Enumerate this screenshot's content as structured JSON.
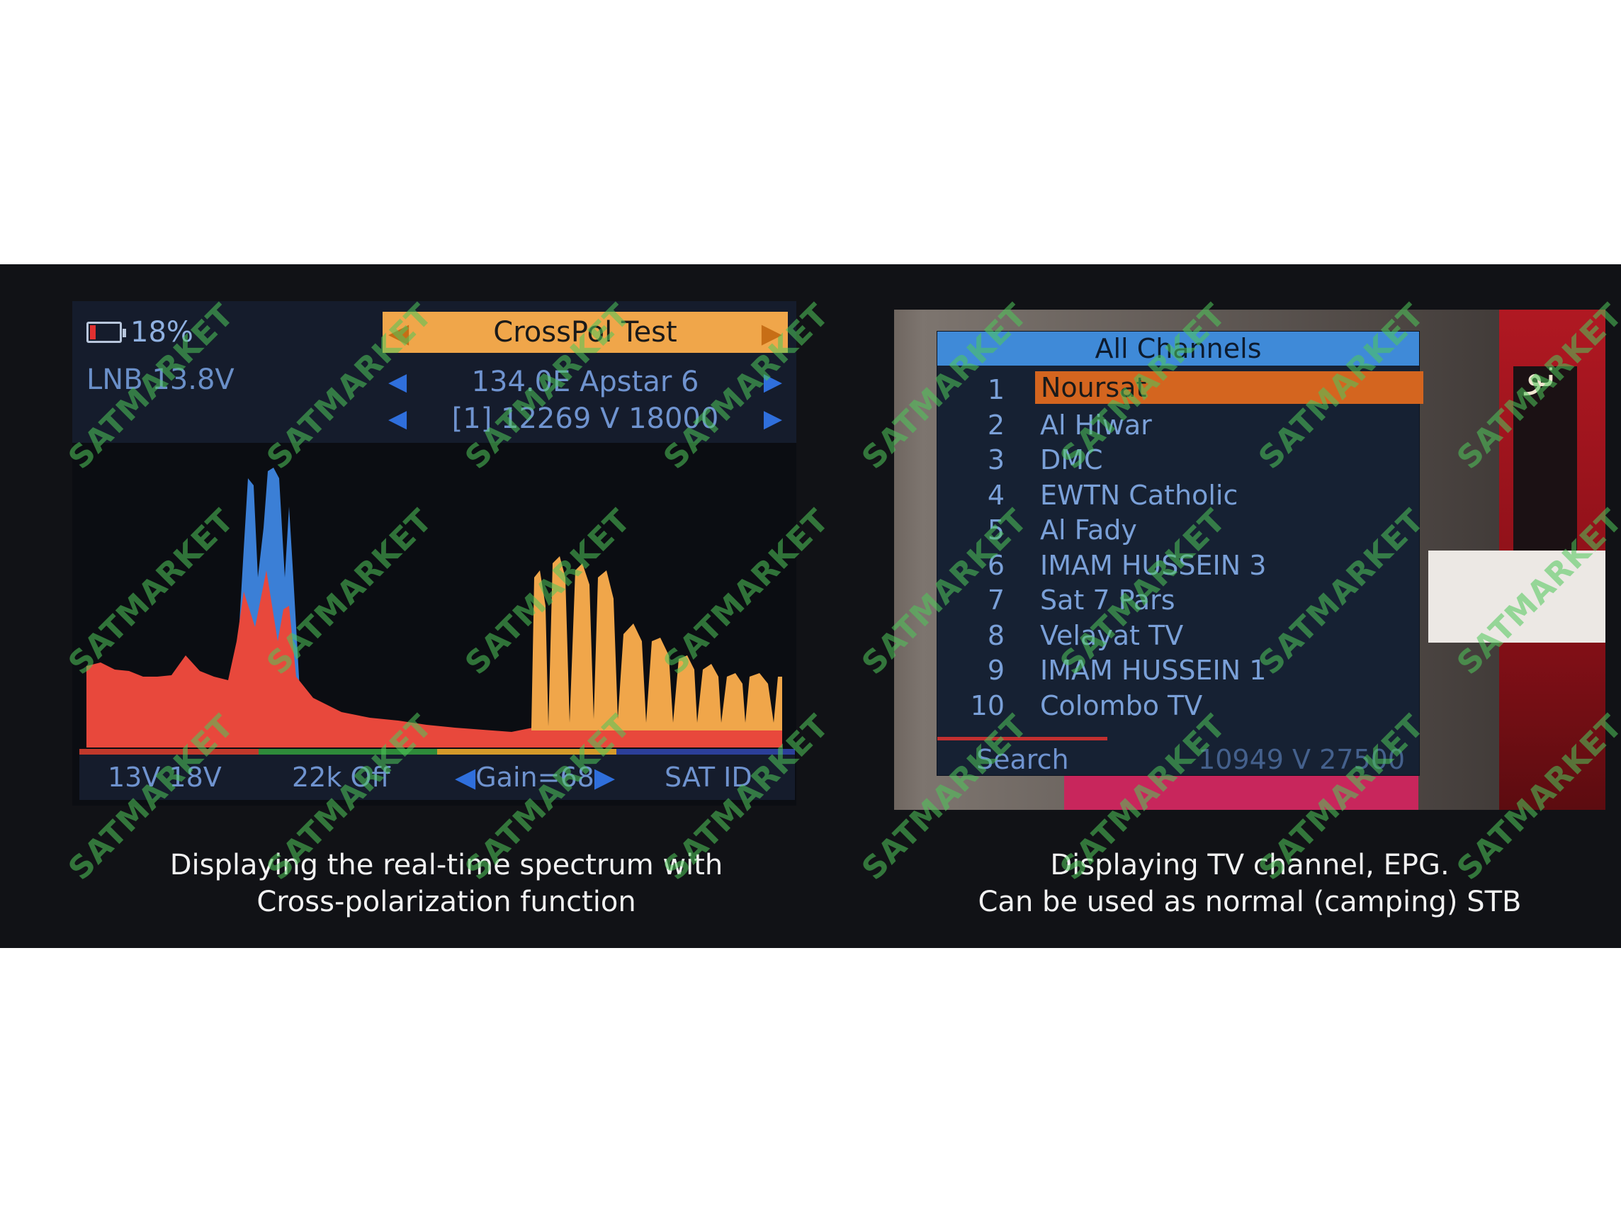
{
  "left": {
    "battery": "18%",
    "lnb": "LNB 13.8V",
    "mode_title": "CrossPol Test",
    "satellite": "134.0E Apstar 6",
    "transponder": "[1] 12269 V 18000",
    "footer": {
      "voltage": "13V 18V",
      "tone": "22k Off",
      "gain": "Gain=68",
      "sat_id": "SAT ID"
    },
    "caption_line1": "Displaying the real-time spectrum with",
    "caption_line2": "Cross-polarization function",
    "colors": {
      "spectrum_main": "#e8483c",
      "spectrum_crosspol": "#3b7fd6",
      "spectrum_other": "#f0a64a",
      "header_accent": "#f0a64a"
    }
  },
  "right": {
    "list_title": "All Channels",
    "channels": [
      {
        "num": "1",
        "name": "Noursat"
      },
      {
        "num": "2",
        "name": "Al Hiwar"
      },
      {
        "num": "3",
        "name": "DMC"
      },
      {
        "num": "4",
        "name": "EWTN Catholic"
      },
      {
        "num": "5",
        "name": "Al Fady"
      },
      {
        "num": "6",
        "name": "IMAM HUSSEIN 3"
      },
      {
        "num": "7",
        "name": "Sat 7 Pars"
      },
      {
        "num": "8",
        "name": "Velayat TV"
      },
      {
        "num": "9",
        "name": "IMAM HUSSEIN 1"
      },
      {
        "num": "10",
        "name": "Colombo TV"
      }
    ],
    "selected_index": 0,
    "footer_label": "Search",
    "footer_tp": "10949 V 27500",
    "caption_line1": "Displaying TV channel, EPG.",
    "caption_line2": "Can be used as normal (camping) STB",
    "colors": {
      "title_bar": "#3f8ad8",
      "selection": "#d4651f"
    }
  },
  "watermark": "SATMARKET",
  "icons": {
    "battery": "battery-icon",
    "left_arrow": "left-arrow-icon",
    "right_arrow": "right-arrow-icon"
  }
}
